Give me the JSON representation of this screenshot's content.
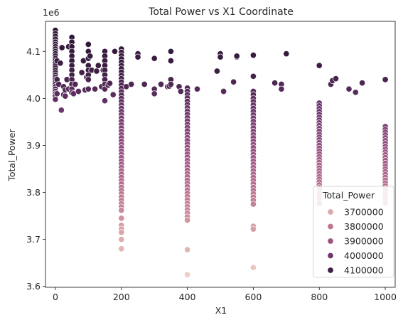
{
  "chart_data": {
    "type": "scatter",
    "title": "Total Power vs X1 Coordinate",
    "xlabel": "X1",
    "ylabel": "Total_Power",
    "y_offset_label": "1e6",
    "y_scale": 1000000,
    "xlim": [
      -30,
      1030
    ],
    "ylim": [
      3598000,
      4164000
    ],
    "x_ticks": [
      0,
      200,
      400,
      600,
      800,
      1000
    ],
    "y_ticks": [
      3.6,
      3.7,
      3.8,
      3.9,
      4.0,
      4.1
    ],
    "y_tick_labels": [
      "3.6",
      "3.7",
      "3.8",
      "3.9",
      "4.0",
      "4.1"
    ],
    "grid": false,
    "legend": {
      "title": "Total_Power",
      "placement": "bottom-right",
      "entries": [
        {
          "label": "3700000",
          "color": "#dba8ac"
        },
        {
          "label": "3800000",
          "color": "#bd7592"
        },
        {
          "label": "3900000",
          "color": "#9b5485"
        },
        {
          "label": "4000000",
          "color": "#6e376f"
        },
        {
          "label": "4100000",
          "color": "#3d1f43"
        }
      ]
    },
    "color_scale": {
      "min": 3620000,
      "max": 4150000,
      "stops": [
        "#f0d0c8",
        "#dba8ac",
        "#bd7592",
        "#9b5485",
        "#6e376f",
        "#3d1f43",
        "#2a1535"
      ]
    },
    "points": [
      {
        "x": 0,
        "y": 4145000
      },
      {
        "x": 0,
        "y": 4138000
      },
      {
        "x": 0,
        "y": 4132000
      },
      {
        "x": 0,
        "y": 4126000
      },
      {
        "x": 0,
        "y": 4120000
      },
      {
        "x": 0,
        "y": 4115000
      },
      {
        "x": 0,
        "y": 4110000
      },
      {
        "x": 0,
        "y": 4105000
      },
      {
        "x": 0,
        "y": 4100000
      },
      {
        "x": 0,
        "y": 4095000
      },
      {
        "x": 0,
        "y": 4090000
      },
      {
        "x": 0,
        "y": 4085000
      },
      {
        "x": 0,
        "y": 4080000
      },
      {
        "x": 0,
        "y": 4075000
      },
      {
        "x": 0,
        "y": 4070000
      },
      {
        "x": 0,
        "y": 4065000
      },
      {
        "x": 0,
        "y": 4060000
      },
      {
        "x": 0,
        "y": 4055000
      },
      {
        "x": 0,
        "y": 4050000
      },
      {
        "x": 0,
        "y": 4045000
      },
      {
        "x": 0,
        "y": 4040000
      },
      {
        "x": 0,
        "y": 4035000
      },
      {
        "x": 0,
        "y": 4030000
      },
      {
        "x": 0,
        "y": 4025000
      },
      {
        "x": 0,
        "y": 4020000
      },
      {
        "x": 0,
        "y": 4015000
      },
      {
        "x": 0,
        "y": 4010000
      },
      {
        "x": 0,
        "y": 4005000
      },
      {
        "x": 0,
        "y": 3998000
      },
      {
        "x": 5,
        "y": 4080000
      },
      {
        "x": 5,
        "y": 4040000
      },
      {
        "x": 5,
        "y": 4010000
      },
      {
        "x": 10,
        "y": 4030000
      },
      {
        "x": 15,
        "y": 4075000
      },
      {
        "x": 18,
        "y": 3975000
      },
      {
        "x": 20,
        "y": 4108000
      },
      {
        "x": 25,
        "y": 4008000
      },
      {
        "x": 25,
        "y": 4025000
      },
      {
        "x": 30,
        "y": 4005000
      },
      {
        "x": 30,
        "y": 4018000
      },
      {
        "x": 35,
        "y": 4040000
      },
      {
        "x": 40,
        "y": 4020000
      },
      {
        "x": 40,
        "y": 4110000
      },
      {
        "x": 50,
        "y": 4130000
      },
      {
        "x": 50,
        "y": 4120000
      },
      {
        "x": 50,
        "y": 4110000
      },
      {
        "x": 50,
        "y": 4100000
      },
      {
        "x": 50,
        "y": 4090000
      },
      {
        "x": 50,
        "y": 4080000
      },
      {
        "x": 50,
        "y": 4070000
      },
      {
        "x": 50,
        "y": 4060000
      },
      {
        "x": 50,
        "y": 4050000
      },
      {
        "x": 50,
        "y": 4040000
      },
      {
        "x": 50,
        "y": 4030000
      },
      {
        "x": 50,
        "y": 4020000
      },
      {
        "x": 50,
        "y": 4012000
      },
      {
        "x": 55,
        "y": 4010000
      },
      {
        "x": 60,
        "y": 4030000
      },
      {
        "x": 70,
        "y": 4015000
      },
      {
        "x": 80,
        "y": 4055000
      },
      {
        "x": 85,
        "y": 4080000
      },
      {
        "x": 90,
        "y": 4018000
      },
      {
        "x": 95,
        "y": 4045000
      },
      {
        "x": 100,
        "y": 4115000
      },
      {
        "x": 100,
        "y": 4100000
      },
      {
        "x": 100,
        "y": 4085000
      },
      {
        "x": 100,
        "y": 4070000
      },
      {
        "x": 100,
        "y": 4060000
      },
      {
        "x": 100,
        "y": 4050000
      },
      {
        "x": 100,
        "y": 4040000
      },
      {
        "x": 100,
        "y": 4020000
      },
      {
        "x": 105,
        "y": 4090000
      },
      {
        "x": 110,
        "y": 4060000
      },
      {
        "x": 120,
        "y": 4020000
      },
      {
        "x": 125,
        "y": 4058000
      },
      {
        "x": 130,
        "y": 4070000
      },
      {
        "x": 140,
        "y": 4025000
      },
      {
        "x": 145,
        "y": 4060000
      },
      {
        "x": 150,
        "y": 4100000
      },
      {
        "x": 150,
        "y": 4090000
      },
      {
        "x": 150,
        "y": 4080000
      },
      {
        "x": 150,
        "y": 4070000
      },
      {
        "x": 150,
        "y": 4060000
      },
      {
        "x": 150,
        "y": 4050000
      },
      {
        "x": 150,
        "y": 4040000
      },
      {
        "x": 150,
        "y": 4030000
      },
      {
        "x": 150,
        "y": 4020000
      },
      {
        "x": 150,
        "y": 3995000
      },
      {
        "x": 160,
        "y": 4028000
      },
      {
        "x": 165,
        "y": 4032000
      },
      {
        "x": 175,
        "y": 4008000
      },
      {
        "x": 180,
        "y": 4100000
      },
      {
        "x": 200,
        "y": 4105000
      },
      {
        "x": 200,
        "y": 4098000
      },
      {
        "x": 200,
        "y": 4091000
      },
      {
        "x": 200,
        "y": 4084000
      },
      {
        "x": 200,
        "y": 4077000
      },
      {
        "x": 200,
        "y": 4070000
      },
      {
        "x": 200,
        "y": 4063000
      },
      {
        "x": 200,
        "y": 4056000
      },
      {
        "x": 200,
        "y": 4049000
      },
      {
        "x": 200,
        "y": 4042000
      },
      {
        "x": 200,
        "y": 4035000
      },
      {
        "x": 200,
        "y": 4028000
      },
      {
        "x": 200,
        "y": 4021000
      },
      {
        "x": 200,
        "y": 4014000
      },
      {
        "x": 200,
        "y": 4007000
      },
      {
        "x": 200,
        "y": 4000000
      },
      {
        "x": 200,
        "y": 3993000
      },
      {
        "x": 200,
        "y": 3986000
      },
      {
        "x": 200,
        "y": 3979000
      },
      {
        "x": 200,
        "y": 3972000
      },
      {
        "x": 200,
        "y": 3965000
      },
      {
        "x": 200,
        "y": 3958000
      },
      {
        "x": 200,
        "y": 3951000
      },
      {
        "x": 200,
        "y": 3944000
      },
      {
        "x": 200,
        "y": 3937000
      },
      {
        "x": 200,
        "y": 3930000
      },
      {
        "x": 200,
        "y": 3923000
      },
      {
        "x": 200,
        "y": 3916000
      },
      {
        "x": 200,
        "y": 3909000
      },
      {
        "x": 200,
        "y": 3902000
      },
      {
        "x": 200,
        "y": 3895000
      },
      {
        "x": 200,
        "y": 3888000
      },
      {
        "x": 200,
        "y": 3881000
      },
      {
        "x": 200,
        "y": 3874000
      },
      {
        "x": 200,
        "y": 3867000
      },
      {
        "x": 200,
        "y": 3860000
      },
      {
        "x": 200,
        "y": 3853000
      },
      {
        "x": 200,
        "y": 3846000
      },
      {
        "x": 200,
        "y": 3839000
      },
      {
        "x": 200,
        "y": 3832000
      },
      {
        "x": 200,
        "y": 3825000
      },
      {
        "x": 200,
        "y": 3818000
      },
      {
        "x": 200,
        "y": 3811000
      },
      {
        "x": 200,
        "y": 3804000
      },
      {
        "x": 200,
        "y": 3797000
      },
      {
        "x": 200,
        "y": 3790000
      },
      {
        "x": 200,
        "y": 3783000
      },
      {
        "x": 200,
        "y": 3776000
      },
      {
        "x": 200,
        "y": 3769000
      },
      {
        "x": 200,
        "y": 3762000
      },
      {
        "x": 200,
        "y": 3745000
      },
      {
        "x": 200,
        "y": 3730000
      },
      {
        "x": 200,
        "y": 3722000
      },
      {
        "x": 200,
        "y": 3715000
      },
      {
        "x": 200,
        "y": 3700000
      },
      {
        "x": 200,
        "y": 3680000
      },
      {
        "x": 215,
        "y": 4025000
      },
      {
        "x": 230,
        "y": 4030000
      },
      {
        "x": 250,
        "y": 4095000
      },
      {
        "x": 250,
        "y": 4088000
      },
      {
        "x": 270,
        "y": 4030000
      },
      {
        "x": 300,
        "y": 4085000
      },
      {
        "x": 300,
        "y": 4020000
      },
      {
        "x": 300,
        "y": 4010000
      },
      {
        "x": 320,
        "y": 4030000
      },
      {
        "x": 340,
        "y": 4025000
      },
      {
        "x": 345,
        "y": 4026000
      },
      {
        "x": 350,
        "y": 4100000
      },
      {
        "x": 350,
        "y": 4080000
      },
      {
        "x": 350,
        "y": 4040000
      },
      {
        "x": 350,
        "y": 4030000
      },
      {
        "x": 375,
        "y": 4025000
      },
      {
        "x": 380,
        "y": 4015000
      },
      {
        "x": 400,
        "y": 4022000
      },
      {
        "x": 400,
        "y": 4015000
      },
      {
        "x": 400,
        "y": 4008000
      },
      {
        "x": 400,
        "y": 4001000
      },
      {
        "x": 400,
        "y": 3994000
      },
      {
        "x": 400,
        "y": 3987000
      },
      {
        "x": 400,
        "y": 3980000
      },
      {
        "x": 400,
        "y": 3973000
      },
      {
        "x": 400,
        "y": 3966000
      },
      {
        "x": 400,
        "y": 3959000
      },
      {
        "x": 400,
        "y": 3952000
      },
      {
        "x": 400,
        "y": 3945000
      },
      {
        "x": 400,
        "y": 3938000
      },
      {
        "x": 400,
        "y": 3931000
      },
      {
        "x": 400,
        "y": 3924000
      },
      {
        "x": 400,
        "y": 3917000
      },
      {
        "x": 400,
        "y": 3910000
      },
      {
        "x": 400,
        "y": 3903000
      },
      {
        "x": 400,
        "y": 3896000
      },
      {
        "x": 400,
        "y": 3889000
      },
      {
        "x": 400,
        "y": 3882000
      },
      {
        "x": 400,
        "y": 3875000
      },
      {
        "x": 400,
        "y": 3868000
      },
      {
        "x": 400,
        "y": 3861000
      },
      {
        "x": 400,
        "y": 3854000
      },
      {
        "x": 400,
        "y": 3847000
      },
      {
        "x": 400,
        "y": 3840000
      },
      {
        "x": 400,
        "y": 3833000
      },
      {
        "x": 400,
        "y": 3826000
      },
      {
        "x": 400,
        "y": 3819000
      },
      {
        "x": 400,
        "y": 3812000
      },
      {
        "x": 400,
        "y": 3805000
      },
      {
        "x": 400,
        "y": 3798000
      },
      {
        "x": 400,
        "y": 3791000
      },
      {
        "x": 400,
        "y": 3784000
      },
      {
        "x": 400,
        "y": 3777000
      },
      {
        "x": 400,
        "y": 3770000
      },
      {
        "x": 400,
        "y": 3763000
      },
      {
        "x": 400,
        "y": 3756000
      },
      {
        "x": 400,
        "y": 3748000
      },
      {
        "x": 400,
        "y": 3741000
      },
      {
        "x": 400,
        "y": 3678000
      },
      {
        "x": 400,
        "y": 3625000
      },
      {
        "x": 430,
        "y": 4020000
      },
      {
        "x": 490,
        "y": 4058000
      },
      {
        "x": 500,
        "y": 4095000
      },
      {
        "x": 500,
        "y": 4088000
      },
      {
        "x": 510,
        "y": 4015000
      },
      {
        "x": 540,
        "y": 4035000
      },
      {
        "x": 550,
        "y": 4088000
      },
      {
        "x": 550,
        "y": 4090000
      },
      {
        "x": 600,
        "y": 4092000
      },
      {
        "x": 600,
        "y": 4047000
      },
      {
        "x": 600,
        "y": 4015000
      },
      {
        "x": 600,
        "y": 4008000
      },
      {
        "x": 600,
        "y": 4000000
      },
      {
        "x": 600,
        "y": 3993000
      },
      {
        "x": 600,
        "y": 3986000
      },
      {
        "x": 600,
        "y": 3979000
      },
      {
        "x": 600,
        "y": 3972000
      },
      {
        "x": 600,
        "y": 3965000
      },
      {
        "x": 600,
        "y": 3958000
      },
      {
        "x": 600,
        "y": 3951000
      },
      {
        "x": 600,
        "y": 3944000
      },
      {
        "x": 600,
        "y": 3937000
      },
      {
        "x": 600,
        "y": 3930000
      },
      {
        "x": 600,
        "y": 3923000
      },
      {
        "x": 600,
        "y": 3916000
      },
      {
        "x": 600,
        "y": 3909000
      },
      {
        "x": 600,
        "y": 3902000
      },
      {
        "x": 600,
        "y": 3895000
      },
      {
        "x": 600,
        "y": 3888000
      },
      {
        "x": 600,
        "y": 3881000
      },
      {
        "x": 600,
        "y": 3874000
      },
      {
        "x": 600,
        "y": 3867000
      },
      {
        "x": 600,
        "y": 3860000
      },
      {
        "x": 600,
        "y": 3853000
      },
      {
        "x": 600,
        "y": 3846000
      },
      {
        "x": 600,
        "y": 3839000
      },
      {
        "x": 600,
        "y": 3832000
      },
      {
        "x": 600,
        "y": 3825000
      },
      {
        "x": 600,
        "y": 3818000
      },
      {
        "x": 600,
        "y": 3811000
      },
      {
        "x": 600,
        "y": 3804000
      },
      {
        "x": 600,
        "y": 3797000
      },
      {
        "x": 600,
        "y": 3790000
      },
      {
        "x": 600,
        "y": 3783000
      },
      {
        "x": 600,
        "y": 3775000
      },
      {
        "x": 600,
        "y": 3728000
      },
      {
        "x": 600,
        "y": 3722000
      },
      {
        "x": 600,
        "y": 3640000
      },
      {
        "x": 665,
        "y": 4033000
      },
      {
        "x": 685,
        "y": 4030000
      },
      {
        "x": 685,
        "y": 4020000
      },
      {
        "x": 700,
        "y": 4095000
      },
      {
        "x": 800,
        "y": 4070000
      },
      {
        "x": 800,
        "y": 3990000
      },
      {
        "x": 800,
        "y": 3984000
      },
      {
        "x": 800,
        "y": 3978000
      },
      {
        "x": 800,
        "y": 3972000
      },
      {
        "x": 800,
        "y": 3966000
      },
      {
        "x": 800,
        "y": 3960000
      },
      {
        "x": 800,
        "y": 3954000
      },
      {
        "x": 800,
        "y": 3948000
      },
      {
        "x": 800,
        "y": 3942000
      },
      {
        "x": 800,
        "y": 3936000
      },
      {
        "x": 800,
        "y": 3930000
      },
      {
        "x": 800,
        "y": 3924000
      },
      {
        "x": 800,
        "y": 3918000
      },
      {
        "x": 800,
        "y": 3912000
      },
      {
        "x": 800,
        "y": 3906000
      },
      {
        "x": 800,
        "y": 3900000
      },
      {
        "x": 800,
        "y": 3894000
      },
      {
        "x": 800,
        "y": 3888000
      },
      {
        "x": 800,
        "y": 3882000
      },
      {
        "x": 800,
        "y": 3876000
      },
      {
        "x": 800,
        "y": 3870000
      },
      {
        "x": 800,
        "y": 3864000
      },
      {
        "x": 800,
        "y": 3858000
      },
      {
        "x": 800,
        "y": 3852000
      },
      {
        "x": 800,
        "y": 3846000
      },
      {
        "x": 800,
        "y": 3840000
      },
      {
        "x": 800,
        "y": 3834000
      },
      {
        "x": 800,
        "y": 3828000
      },
      {
        "x": 800,
        "y": 3822000
      },
      {
        "x": 800,
        "y": 3816000
      },
      {
        "x": 800,
        "y": 3810000
      },
      {
        "x": 800,
        "y": 3804000
      },
      {
        "x": 800,
        "y": 3798000
      },
      {
        "x": 800,
        "y": 3792000
      },
      {
        "x": 800,
        "y": 3786000
      },
      {
        "x": 800,
        "y": 3776000
      },
      {
        "x": 835,
        "y": 4030000
      },
      {
        "x": 840,
        "y": 4038000
      },
      {
        "x": 850,
        "y": 4042000
      },
      {
        "x": 890,
        "y": 4020000
      },
      {
        "x": 910,
        "y": 4013000
      },
      {
        "x": 930,
        "y": 4033000
      },
      {
        "x": 1000,
        "y": 4040000
      },
      {
        "x": 1000,
        "y": 3940000
      },
      {
        "x": 1000,
        "y": 3934000
      },
      {
        "x": 1000,
        "y": 3928000
      },
      {
        "x": 1000,
        "y": 3922000
      },
      {
        "x": 1000,
        "y": 3916000
      },
      {
        "x": 1000,
        "y": 3910000
      },
      {
        "x": 1000,
        "y": 3904000
      },
      {
        "x": 1000,
        "y": 3898000
      },
      {
        "x": 1000,
        "y": 3892000
      },
      {
        "x": 1000,
        "y": 3886000
      },
      {
        "x": 1000,
        "y": 3880000
      },
      {
        "x": 1000,
        "y": 3874000
      },
      {
        "x": 1000,
        "y": 3868000
      },
      {
        "x": 1000,
        "y": 3862000
      },
      {
        "x": 1000,
        "y": 3856000
      },
      {
        "x": 1000,
        "y": 3850000
      },
      {
        "x": 1000,
        "y": 3844000
      },
      {
        "x": 1000,
        "y": 3838000
      },
      {
        "x": 1000,
        "y": 3832000
      },
      {
        "x": 1000,
        "y": 3826000
      },
      {
        "x": 1000,
        "y": 3820000
      },
      {
        "x": 1000,
        "y": 3814000
      },
      {
        "x": 1000,
        "y": 3808000
      },
      {
        "x": 1000,
        "y": 3802000
      },
      {
        "x": 1000,
        "y": 3796000
      },
      {
        "x": 1000,
        "y": 3790000
      },
      {
        "x": 1000,
        "y": 3784000
      },
      {
        "x": 1000,
        "y": 3778000
      }
    ]
  }
}
